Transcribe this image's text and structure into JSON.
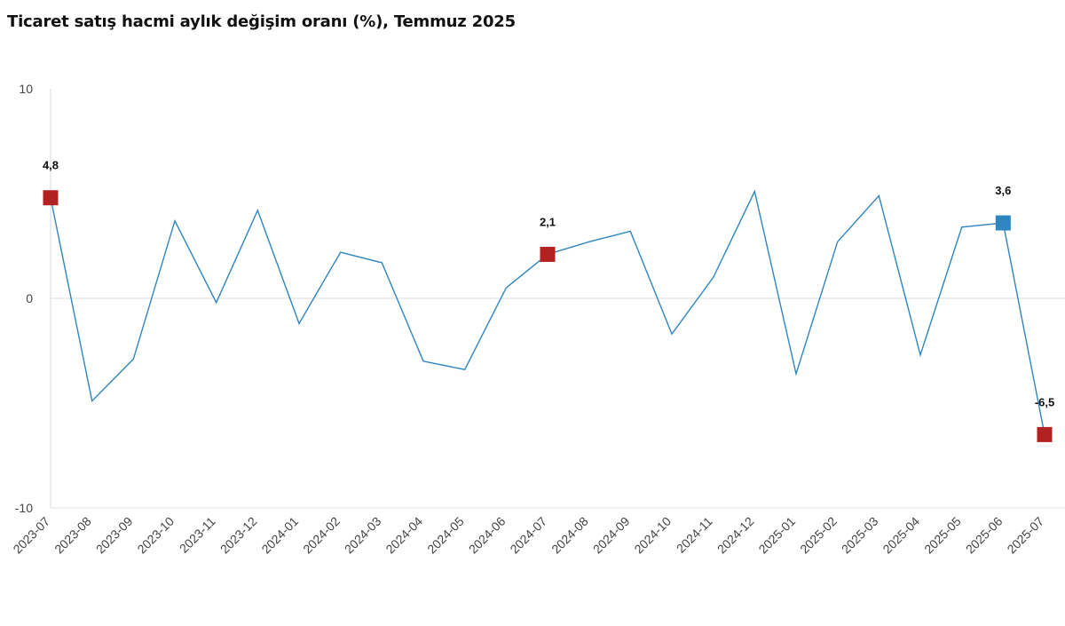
{
  "chart_data": {
    "type": "line",
    "title": "Ticaret satış hacmi aylık değişim oranı (%), Temmuz 2025",
    "xlabel": "",
    "ylabel": "",
    "ylim": [
      -10,
      10
    ],
    "yticks": [
      {
        "value": 10,
        "label": "10"
      },
      {
        "value": 0,
        "label": "0"
      },
      {
        "value": -10,
        "label": "-10"
      }
    ],
    "grid": "zero-line only",
    "categories": [
      "2023-07",
      "2023-08",
      "2023-09",
      "2023-10",
      "2023-11",
      "2023-12",
      "2024-01",
      "2024-02",
      "2024-03",
      "2024-04",
      "2024-05",
      "2024-06",
      "2024-07",
      "2024-08",
      "2024-09",
      "2024-10",
      "2024-11",
      "2024-12",
      "2025-01",
      "2025-02",
      "2025-03",
      "2025-04",
      "2025-05",
      "2025-06",
      "2025-07"
    ],
    "values": [
      4.8,
      -4.9,
      -2.9,
      3.7,
      -0.2,
      4.2,
      -1.2,
      2.2,
      1.7,
      -3.0,
      -3.4,
      0.5,
      2.1,
      2.7,
      3.2,
      -1.7,
      1.0,
      5.1,
      -3.6,
      2.7,
      4.9,
      -2.7,
      3.4,
      3.6,
      -6.5
    ],
    "line_color": "#2e86c1",
    "highlights": [
      {
        "index": 0,
        "label": "4,8",
        "color": "#b22222"
      },
      {
        "index": 12,
        "label": "2,1",
        "color": "#b22222"
      },
      {
        "index": 23,
        "label": "3,6",
        "color": "#2e86c1"
      },
      {
        "index": 24,
        "label": "-6,5",
        "color": "#b22222"
      }
    ]
  }
}
